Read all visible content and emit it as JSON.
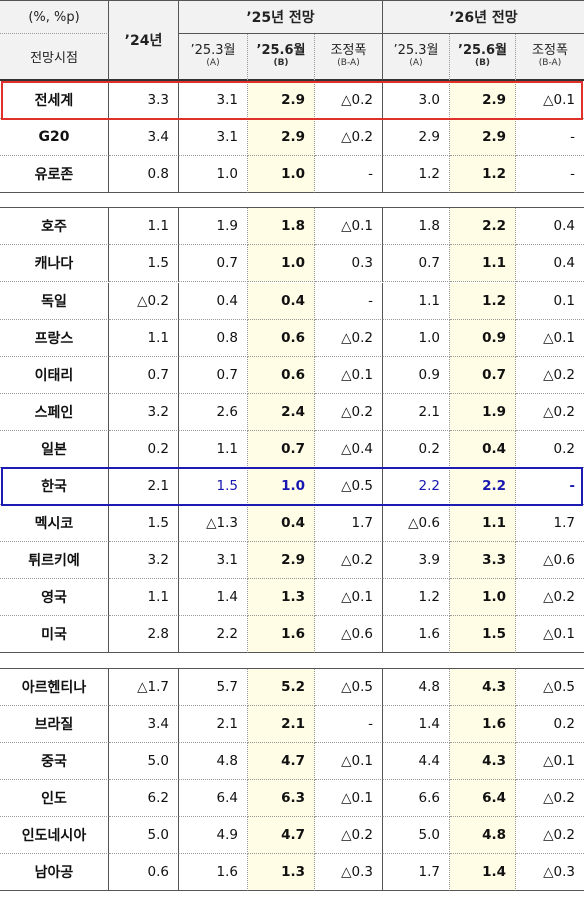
{
  "header": {
    "unit": "(%, %p)",
    "period_label": "전망시점",
    "y24": "’24년",
    "y25": "’25년 전망",
    "y26": "’26년 전망",
    "sub": [
      {
        "main": "’25.3월",
        "tag": "(A)"
      },
      {
        "main": "’25.6월",
        "tag": "(B)"
      },
      {
        "main": "조정폭",
        "tag": "(B-A)"
      }
    ]
  },
  "groups": [
    [
      {
        "name": "전세계",
        "v": [
          "3.3",
          "3.1",
          "2.9",
          "△0.2",
          "3.0",
          "2.9",
          "△0.1"
        ],
        "highlight": "red"
      },
      {
        "name": "G20",
        "v": [
          "3.4",
          "3.1",
          "2.9",
          "△0.2",
          "2.9",
          "2.9",
          "-"
        ]
      },
      {
        "name": "유로존",
        "v": [
          "0.8",
          "1.0",
          "1.0",
          "-",
          "1.2",
          "1.2",
          "-"
        ]
      }
    ],
    [
      {
        "name": "호주",
        "v": [
          "1.1",
          "1.9",
          "1.8",
          "△0.1",
          "1.8",
          "2.2",
          "0.4"
        ]
      },
      {
        "name": "캐나다",
        "v": [
          "1.5",
          "0.7",
          "1.0",
          "0.3",
          "0.7",
          "1.1",
          "0.4"
        ]
      },
      {
        "name": "독일",
        "v": [
          "△0.2",
          "0.4",
          "0.4",
          "-",
          "1.1",
          "1.2",
          "0.1"
        ]
      },
      {
        "name": "프랑스",
        "v": [
          "1.1",
          "0.8",
          "0.6",
          "△0.2",
          "1.0",
          "0.9",
          "△0.1"
        ]
      },
      {
        "name": "이태리",
        "v": [
          "0.7",
          "0.7",
          "0.6",
          "△0.1",
          "0.9",
          "0.7",
          "△0.2"
        ]
      },
      {
        "name": "스페인",
        "v": [
          "3.2",
          "2.6",
          "2.4",
          "△0.2",
          "2.1",
          "1.9",
          "△0.2"
        ]
      },
      {
        "name": "일본",
        "v": [
          "0.2",
          "1.1",
          "0.7",
          "△0.4",
          "0.2",
          "0.4",
          "0.2"
        ]
      },
      {
        "name": "한국",
        "v": [
          "2.1",
          "1.5",
          "1.0",
          "△0.5",
          "2.2",
          "2.2",
          "-"
        ],
        "highlight": "blue"
      },
      {
        "name": "멕시코",
        "v": [
          "1.5",
          "△1.3",
          "0.4",
          "1.7",
          "△0.6",
          "1.1",
          "1.7"
        ]
      },
      {
        "name": "튀르키예",
        "v": [
          "3.2",
          "3.1",
          "2.9",
          "△0.2",
          "3.9",
          "3.3",
          "△0.6"
        ]
      },
      {
        "name": "영국",
        "v": [
          "1.1",
          "1.4",
          "1.3",
          "△0.1",
          "1.2",
          "1.0",
          "△0.2"
        ]
      },
      {
        "name": "미국",
        "v": [
          "2.8",
          "2.2",
          "1.6",
          "△0.6",
          "1.6",
          "1.5",
          "△0.1"
        ]
      }
    ],
    [
      {
        "name": "아르헨티나",
        "v": [
          "△1.7",
          "5.7",
          "5.2",
          "△0.5",
          "4.8",
          "4.3",
          "△0.5"
        ]
      },
      {
        "name": "브라질",
        "v": [
          "3.4",
          "2.1",
          "2.1",
          "-",
          "1.4",
          "1.6",
          "0.2"
        ]
      },
      {
        "name": "중국",
        "v": [
          "5.0",
          "4.8",
          "4.7",
          "△0.1",
          "4.4",
          "4.3",
          "△0.1"
        ]
      },
      {
        "name": "인도",
        "v": [
          "6.2",
          "6.4",
          "6.3",
          "△0.1",
          "6.6",
          "6.4",
          "△0.2"
        ]
      },
      {
        "name": "인도네시아",
        "v": [
          "5.0",
          "4.9",
          "4.7",
          "△0.2",
          "5.0",
          "4.8",
          "△0.2"
        ]
      },
      {
        "name": "남아공",
        "v": [
          "0.6",
          "1.6",
          "1.3",
          "△0.3",
          "1.7",
          "1.4",
          "△0.3"
        ]
      }
    ]
  ]
}
